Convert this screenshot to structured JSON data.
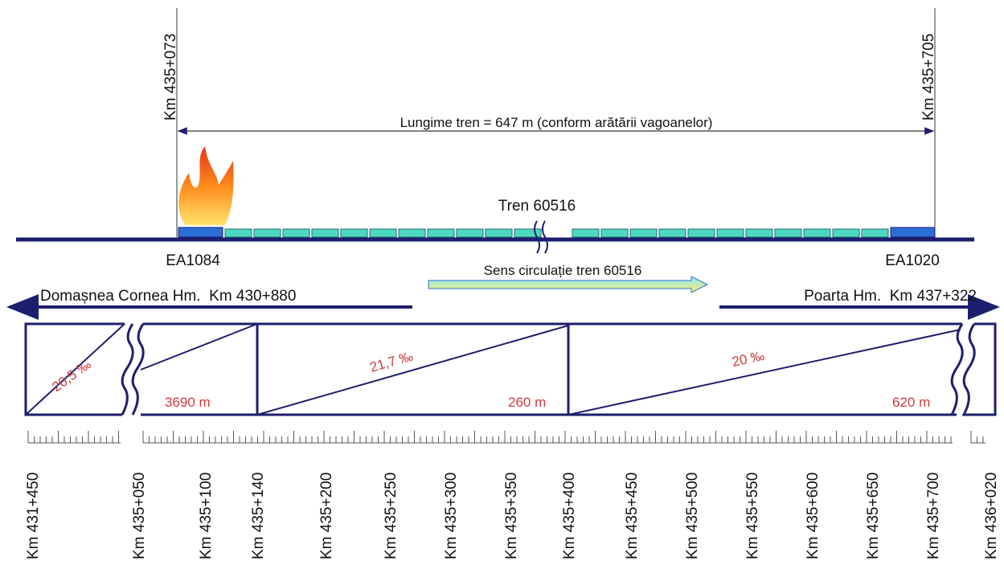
{
  "header": {
    "start_km": "Km 435+073",
    "end_km": "Km 435+705",
    "train_length": "Lungime tren = 647 m (conform arătării vagoanelor)"
  },
  "train": {
    "name": "Tren 60516",
    "loco_rear": "EA1084",
    "loco_front": "EA1020",
    "direction": "Sens circulație tren 60516"
  },
  "stations": {
    "left": "Domașnea Cornea Hm.  Km 430+880",
    "right": "Poarta Hm.  Km 437+322"
  },
  "profile": {
    "gradients": [
      "20,5 ‰",
      "21,7 ‰",
      "20 ‰"
    ],
    "lengths": [
      "3690 m",
      "260 m",
      "620 m"
    ]
  },
  "km_marks": [
    "Km 431+450",
    "Km 435+050",
    "Km 435+100",
    "Km 435+140",
    "Km 435+200",
    "Km 435+250",
    "Km 435+300",
    "Km 435+350",
    "Km 435+400",
    "Km 435+450",
    "Km 435+500",
    "Km 435+550",
    "Km 435+600",
    "Km 435+650",
    "Km 435+700",
    "Km 436+020"
  ]
}
